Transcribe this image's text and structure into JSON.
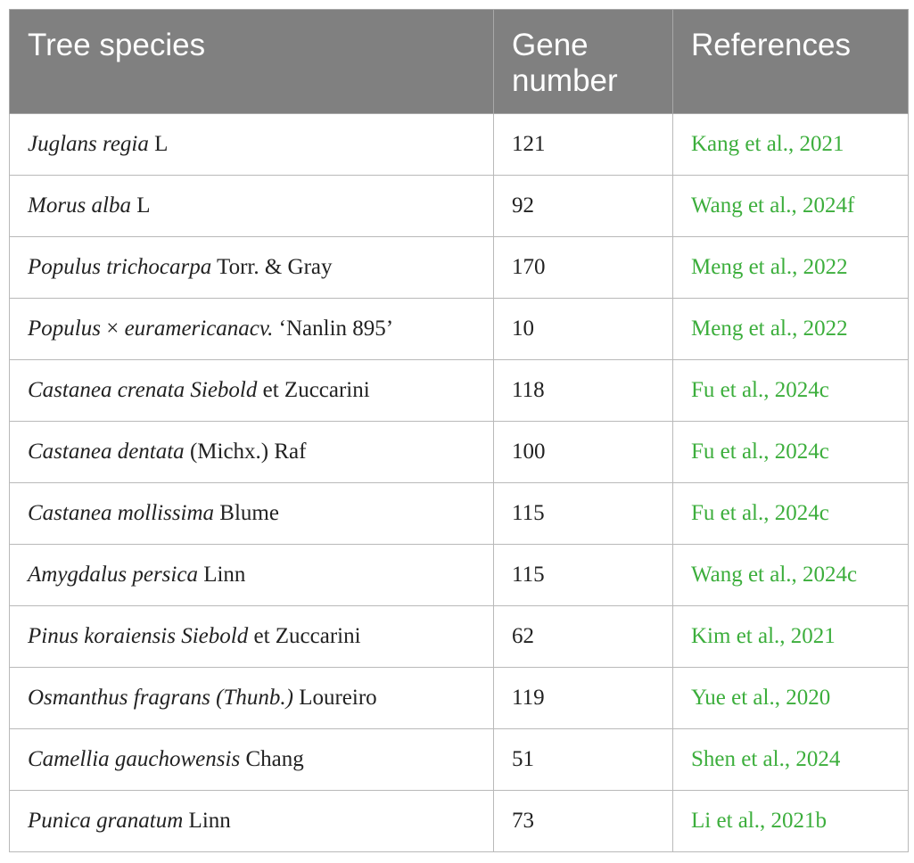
{
  "table": {
    "headers": [
      "Tree species",
      "Gene\nnumber",
      "References"
    ],
    "header_lines": {
      "species": "Tree species",
      "gene_line1": "Gene",
      "gene_line2": "number",
      "references": "References"
    },
    "rows": [
      {
        "species": [
          {
            "t": "Juglans regia",
            "i": true
          },
          {
            "t": " L",
            "i": false
          }
        ],
        "gene_number": "121",
        "reference": "Kang et al., 2021"
      },
      {
        "species": [
          {
            "t": "Morus alba",
            "i": true
          },
          {
            "t": " L",
            "i": false
          }
        ],
        "gene_number": "92",
        "reference": "Wang et al., 2024f"
      },
      {
        "species": [
          {
            "t": "Populus trichocarpa",
            "i": true
          },
          {
            "t": " Torr. & Gray",
            "i": false
          }
        ],
        "gene_number": "170",
        "reference": "Meng et al., 2022"
      },
      {
        "species": [
          {
            "t": "Populus",
            "i": true
          },
          {
            "t": " × ",
            "i": false
          },
          {
            "t": "euramericanacv.",
            "i": true
          },
          {
            "t": " ‘Nanlin 895’",
            "i": false
          }
        ],
        "gene_number": "10",
        "reference": "Meng et al., 2022"
      },
      {
        "species": [
          {
            "t": "Castanea crenata Siebold",
            "i": true
          },
          {
            "t": " et Zuccarini",
            "i": false
          }
        ],
        "gene_number": "118",
        "reference": "Fu et al., 2024c"
      },
      {
        "species": [
          {
            "t": "Castanea dentata",
            "i": true
          },
          {
            "t": " (Michx.) Raf",
            "i": false
          }
        ],
        "gene_number": "100",
        "reference": "Fu et al., 2024c"
      },
      {
        "species": [
          {
            "t": "Castanea mollissima",
            "i": true
          },
          {
            "t": " Blume",
            "i": false
          }
        ],
        "gene_number": "115",
        "reference": "Fu et al., 2024c"
      },
      {
        "species": [
          {
            "t": "Amygdalus persica",
            "i": true
          },
          {
            "t": " Linn",
            "i": false
          }
        ],
        "gene_number": "115",
        "reference": "Wang et al., 2024c"
      },
      {
        "species": [
          {
            "t": "Pinus koraiensis Siebold",
            "i": true
          },
          {
            "t": " et Zuccarini",
            "i": false
          }
        ],
        "gene_number": "62",
        "reference": "Kim et al., 2021"
      },
      {
        "species": [
          {
            "t": "Osmanthus fragrans (Thunb.)",
            "i": true
          },
          {
            "t": " Loureiro",
            "i": false
          }
        ],
        "gene_number": "119",
        "reference": "Yue et al., 2020"
      },
      {
        "species": [
          {
            "t": "Camellia gauchowensis",
            "i": true
          },
          {
            "t": " Chang",
            "i": false
          }
        ],
        "gene_number": "51",
        "reference": "Shen et al., 2024"
      },
      {
        "species": [
          {
            "t": "Punica granatum",
            "i": true
          },
          {
            "t": " Linn",
            "i": false
          }
        ],
        "gene_number": "73",
        "reference": "Li et al., 2021b"
      }
    ]
  },
  "colors": {
    "header_bg": "#808080",
    "header_text": "#ffffff",
    "reference_link": "#3cae3c",
    "border": "#b9b9b9"
  }
}
